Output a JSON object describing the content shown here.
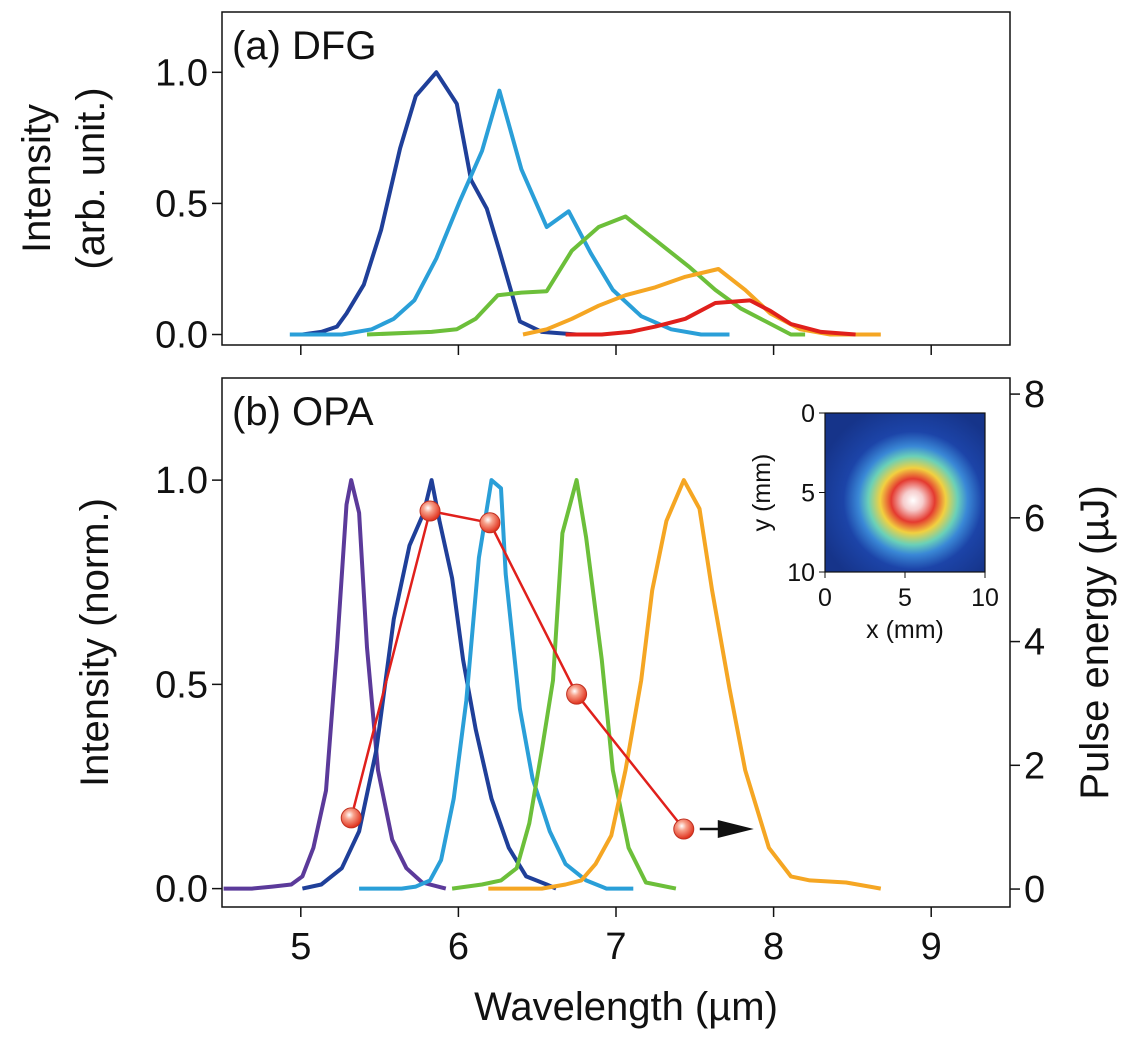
{
  "chart_data": [
    {
      "type": "line",
      "title": "(a) DFG",
      "ylabel": [
        "Intensity",
        "(arb. unit.)"
      ],
      "xlim": [
        4.5,
        9.5
      ],
      "xticks": [
        5,
        6,
        7,
        8,
        9
      ],
      "xtick_labels": false,
      "ylim": [
        -0.04,
        1.23
      ],
      "yticks": [
        {
          "value": 0,
          "label": "0.0"
        },
        {
          "value": 0.5,
          "label": "0.5"
        },
        {
          "value": 1,
          "label": "1.0"
        }
      ],
      "series": [
        {
          "color": "#1f3f99",
          "x": [
            5.01,
            5.13,
            5.23,
            5.29,
            5.4,
            5.51,
            5.63,
            5.73,
            5.86,
            5.99,
            6.08,
            6.18,
            6.26,
            6.39,
            6.53,
            6.75,
            6.89
          ],
          "values": [
            0.0,
            0.01,
            0.03,
            0.08,
            0.19,
            0.4,
            0.71,
            0.91,
            1.0,
            0.88,
            0.59,
            0.48,
            0.32,
            0.05,
            0.01,
            0.0,
            0.0
          ]
        },
        {
          "color": "#2a9fd8",
          "x": [
            4.93,
            5.26,
            5.45,
            5.59,
            5.72,
            5.86,
            6.01,
            6.15,
            6.26,
            6.4,
            6.56,
            6.7,
            6.84,
            6.98,
            7.16,
            7.35,
            7.54,
            7.72
          ],
          "values": [
            0.0,
            0.0,
            0.02,
            0.06,
            0.13,
            0.29,
            0.51,
            0.7,
            0.93,
            0.63,
            0.41,
            0.47,
            0.31,
            0.17,
            0.07,
            0.02,
            0.0,
            0.0
          ]
        },
        {
          "color": "#6cbf3a",
          "x": [
            5.42,
            5.83,
            5.99,
            6.11,
            6.25,
            6.4,
            6.56,
            6.72,
            6.89,
            7.06,
            7.25,
            7.46,
            7.63,
            7.79,
            7.95,
            8.11,
            8.2
          ],
          "values": [
            0.0,
            0.01,
            0.02,
            0.06,
            0.15,
            0.16,
            0.165,
            0.32,
            0.41,
            0.45,
            0.36,
            0.26,
            0.17,
            0.1,
            0.05,
            0.0,
            0.0
          ]
        },
        {
          "color": "#f5a623",
          "x": [
            6.41,
            6.56,
            6.72,
            6.89,
            7.06,
            7.25,
            7.44,
            7.65,
            7.82,
            7.98,
            8.17,
            8.36,
            8.68
          ],
          "values": [
            0.0,
            0.02,
            0.06,
            0.11,
            0.15,
            0.18,
            0.22,
            0.25,
            0.17,
            0.08,
            0.02,
            0.0,
            0.0
          ]
        },
        {
          "color": "#e0201c",
          "x": [
            6.68,
            6.91,
            7.09,
            7.25,
            7.44,
            7.63,
            7.85,
            7.98,
            8.11,
            8.3,
            8.52
          ],
          "values": [
            0.0,
            0.0,
            0.01,
            0.03,
            0.06,
            0.12,
            0.13,
            0.09,
            0.04,
            0.01,
            0.0
          ]
        }
      ]
    },
    {
      "type": "line",
      "title": "(b) OPA",
      "ylabel": "Intensity (norm.)",
      "y2label": "Pulse energy (µJ)",
      "xlabel": "Wavelength (µm)",
      "xlim": [
        4.5,
        9.5
      ],
      "xticks": [
        5,
        6,
        7,
        8,
        9
      ],
      "xtick_labels": true,
      "ylim": [
        -0.045,
        1.25
      ],
      "yticks": [
        {
          "value": 0,
          "label": "0.0"
        },
        {
          "value": 0.5,
          "label": "0.5"
        },
        {
          "value": 1,
          "label": "1.0"
        }
      ],
      "y2lim": [
        -0.29,
        8.26
      ],
      "y2ticks": [
        0,
        2,
        4,
        6,
        8
      ],
      "series": [
        {
          "color": "#5b3a9a",
          "x": [
            4.51,
            4.69,
            4.82,
            4.94,
            5.01,
            5.08,
            5.16,
            5.23,
            5.29,
            5.32,
            5.37,
            5.42,
            5.49,
            5.58,
            5.67,
            5.77,
            5.92
          ],
          "values": [
            0.0,
            0.0,
            0.005,
            0.01,
            0.03,
            0.1,
            0.24,
            0.59,
            0.94,
            1.0,
            0.92,
            0.59,
            0.29,
            0.12,
            0.05,
            0.015,
            0.0
          ]
        },
        {
          "color": "#1f3f99",
          "x": [
            5.01,
            5.13,
            5.26,
            5.37,
            5.48,
            5.59,
            5.69,
            5.78,
            5.83,
            5.88,
            5.96,
            6.03,
            6.11,
            6.21,
            6.32,
            6.43,
            6.56,
            6.62
          ],
          "values": [
            0.0,
            0.01,
            0.05,
            0.14,
            0.34,
            0.66,
            0.84,
            0.92,
            1.0,
            0.9,
            0.76,
            0.56,
            0.39,
            0.22,
            0.1,
            0.03,
            0.01,
            0.0
          ]
        },
        {
          "color": "#2a9fd8",
          "x": [
            5.37,
            5.64,
            5.73,
            5.82,
            5.89,
            5.97,
            6.05,
            6.13,
            6.21,
            6.27,
            6.3,
            6.39,
            6.47,
            6.58,
            6.68,
            6.81,
            6.94,
            7.11
          ],
          "values": [
            0.0,
            0.0,
            0.005,
            0.02,
            0.07,
            0.22,
            0.46,
            0.81,
            1.0,
            0.98,
            0.77,
            0.44,
            0.27,
            0.14,
            0.06,
            0.02,
            0.0,
            0.0
          ]
        },
        {
          "color": "#6cbf3a",
          "x": [
            5.96,
            6.15,
            6.27,
            6.37,
            6.45,
            6.53,
            6.6,
            6.66,
            6.75,
            6.81,
            6.91,
            6.98,
            7.08,
            7.19,
            7.38
          ],
          "values": [
            0.0,
            0.01,
            0.02,
            0.05,
            0.16,
            0.34,
            0.51,
            0.87,
            1.0,
            0.86,
            0.56,
            0.29,
            0.1,
            0.015,
            0.0
          ]
        },
        {
          "color": "#f5a623",
          "x": [
            6.19,
            6.53,
            6.68,
            6.78,
            6.87,
            6.97,
            7.06,
            7.16,
            7.23,
            7.32,
            7.43,
            7.53,
            7.61,
            7.72,
            7.82,
            7.97,
            8.11,
            8.23,
            8.46,
            8.68
          ],
          "values": [
            0.0,
            0.0,
            0.01,
            0.02,
            0.06,
            0.13,
            0.29,
            0.51,
            0.73,
            0.9,
            1.0,
            0.93,
            0.73,
            0.49,
            0.29,
            0.1,
            0.03,
            0.02,
            0.015,
            0.0
          ]
        },
        {
          "color": "#e0201c",
          "axis": "y2",
          "marker": true,
          "x": [
            5.32,
            5.82,
            6.2,
            6.75,
            7.43
          ],
          "values": [
            1.15,
            6.11,
            5.92,
            3.15,
            0.97
          ]
        }
      ]
    },
    {
      "type": "heatmap",
      "xlabel": "x (mm)",
      "ylabel": "y (mm)",
      "xlim": [
        0,
        10
      ],
      "xticks": [
        0,
        5,
        10
      ],
      "ylim": [
        10,
        0
      ],
      "yticks": [
        0,
        5,
        10
      ]
    }
  ]
}
